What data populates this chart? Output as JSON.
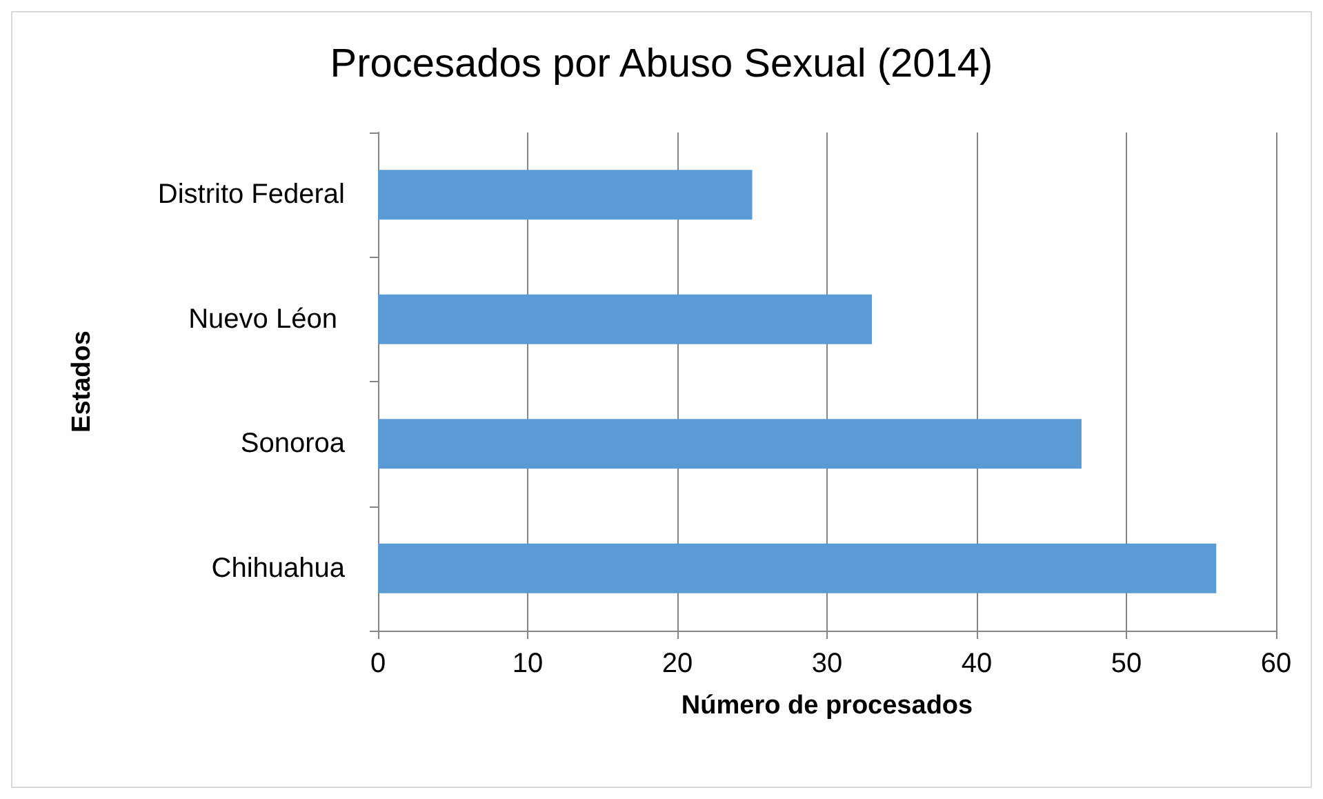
{
  "chart_data": {
    "type": "bar",
    "orientation": "horizontal",
    "title": "Procesados por Abuso Sexual (2014)",
    "xlabel": "Número de procesados",
    "ylabel": "Estados",
    "categories": [
      "Distrito Federal",
      "Nuevo Léon ",
      "Sonoroa",
      "Chihuahua"
    ],
    "values": [
      25,
      33,
      47,
      56
    ],
    "color": "#5b9bd5",
    "xlim": [
      0,
      60
    ],
    "xticks": [
      0,
      10,
      20,
      30,
      40,
      50,
      60
    ],
    "grid": "x"
  }
}
